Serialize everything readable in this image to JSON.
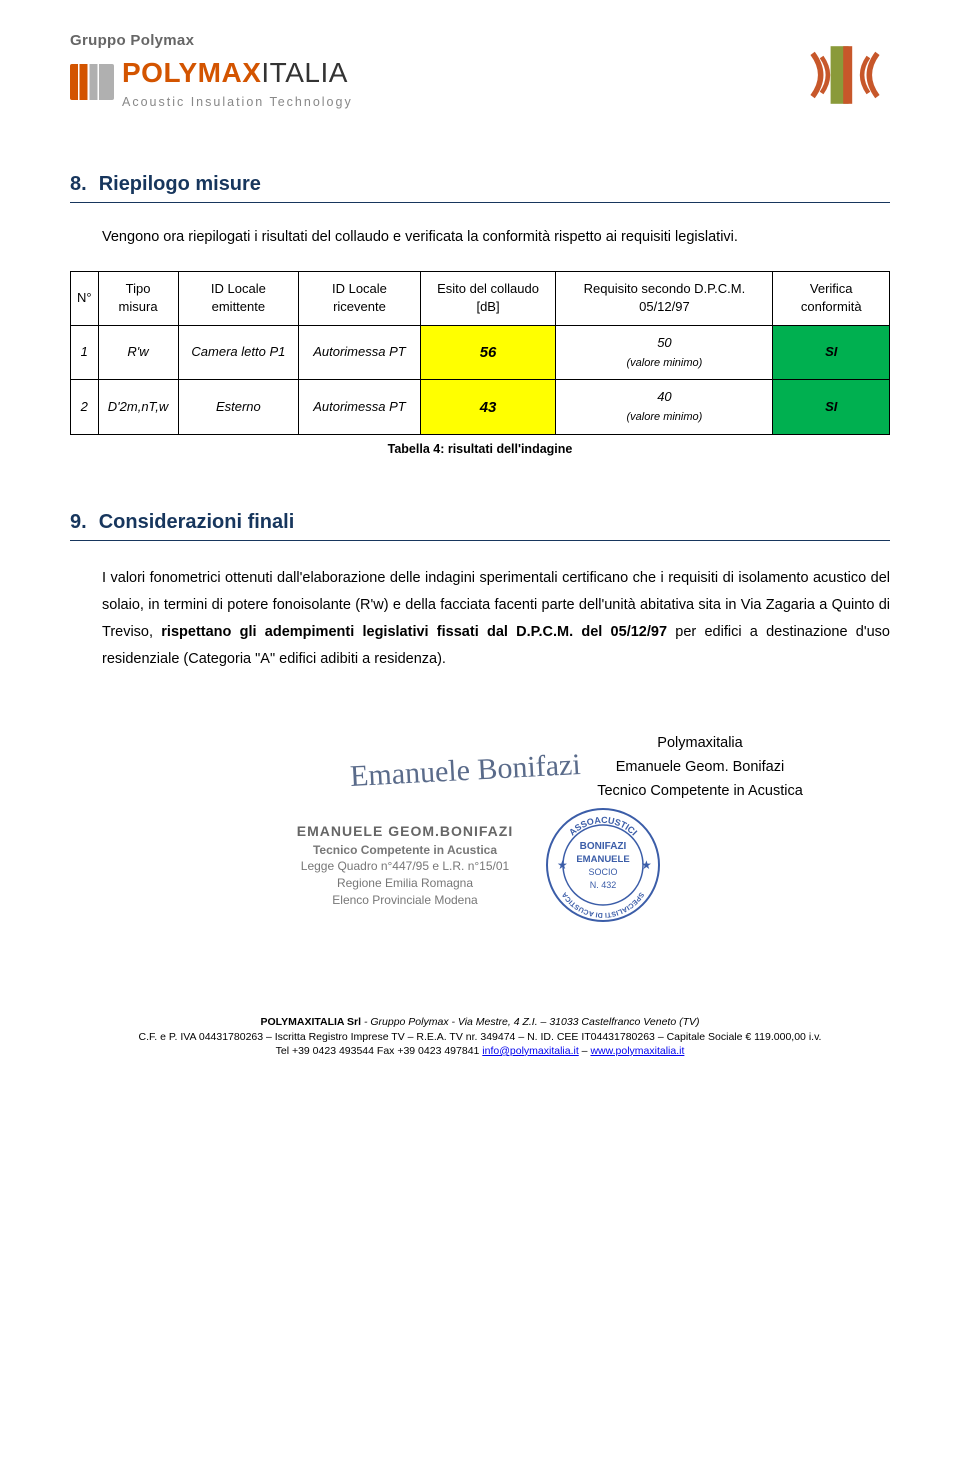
{
  "header": {
    "group_label": "Gruppo Polymax",
    "brand_orange": "POLYMAX",
    "brand_gray": "ITALIA",
    "tagline": "Acoustic Insulation Technology"
  },
  "section8": {
    "number": "8.",
    "title": "Riepilogo misure",
    "intro": "Vengono ora riepilogati i risultati del collaudo e verificata la conformità rispetto ai requisiti legislativi.",
    "columns": [
      "N°",
      "Tipo misura",
      "ID Locale emittente",
      "ID Locale ricevente",
      "Esito del collaudo [dB]",
      "Requisito secondo D.P.C.M. 05/12/97",
      "Verifica conformità"
    ],
    "rows": [
      {
        "n": "1",
        "tipo": "R'w",
        "tipo_sub": "",
        "emittente": "Camera letto P1",
        "ricevente": "Autorimessa PT",
        "esito": "56",
        "req_val": "50",
        "req_note": "(valore minimo)",
        "verifica": "SI"
      },
      {
        "n": "2",
        "tipo": "D'2m,nT,w",
        "tipo_sub": "",
        "emittente": "Esterno",
        "ricevente": "Autorimessa PT",
        "esito": "43",
        "req_val": "40",
        "req_note": "(valore minimo)",
        "verifica": "SI"
      }
    ],
    "caption": "Tabella 4: risultati dell'indagine",
    "colors": {
      "esito_bg": "#ffff00",
      "verifica_bg": "#00b050"
    }
  },
  "section9": {
    "number": "9.",
    "title": "Considerazioni finali",
    "paragraph": "I valori fonometrici ottenuti dall'elaborazione delle indagini sperimentali certificano che i requisiti di isolamento acustico del solaio, in termini di potere fonoisolante (R'w) e della facciata facenti parte dell'unità abitativa sita in Via Zagaria a Quinto di Treviso, rispettano gli adempimenti legislativi fissati dal D.P.C.M. del 05/12/97 per edifici a destinazione d'uso residenziale (Categoria \"A\" edifici adibiti a residenza)."
  },
  "signature": {
    "company": "Polymaxitalia",
    "name": "Emanuele Geom. Bonifazi",
    "role": "Tecnico Competente in Acustica",
    "scribble": "Emanuele Bonifazi",
    "stamp": {
      "name": "EMANUELE GEOM.BONIFAZI",
      "role": "Tecnico Competente in Acustica",
      "law": "Legge Quadro n°447/95 e L.R. n°15/01",
      "region": "Regione Emilia Romagna",
      "registry": "Elenco Provinciale Modena"
    },
    "round_stamp": {
      "outer_text_top": "ASSOACUSTICI",
      "outer_text_bottom": "SPECIALISTI DI ACUSTICA",
      "inner_name1": "BONIFAZI",
      "inner_name2": "EMANUELE",
      "inner_role": "SOCIO",
      "inner_num": "N. 432",
      "color": "#3b5da8"
    }
  },
  "footer": {
    "line1_bold": "POLYMAXITALIA Srl",
    "line1_rest": " - Gruppo Polymax - Via Mestre, 4 Z.I. – 31033 Castelfranco Veneto (TV)",
    "line2": "C.F. e P. IVA 04431780263 – Iscritta Registro Imprese TV – R.E.A. TV nr. 349474 – N. ID. CEE IT04431780263 – Capitale Sociale € 119.000,00 i.v.",
    "line3_pre": "Tel +39 0423 493544 Fax +39 0423 497841 ",
    "email": "info@polymaxitalia.it",
    "sep": " – ",
    "web": "www.polymaxitalia.it"
  }
}
